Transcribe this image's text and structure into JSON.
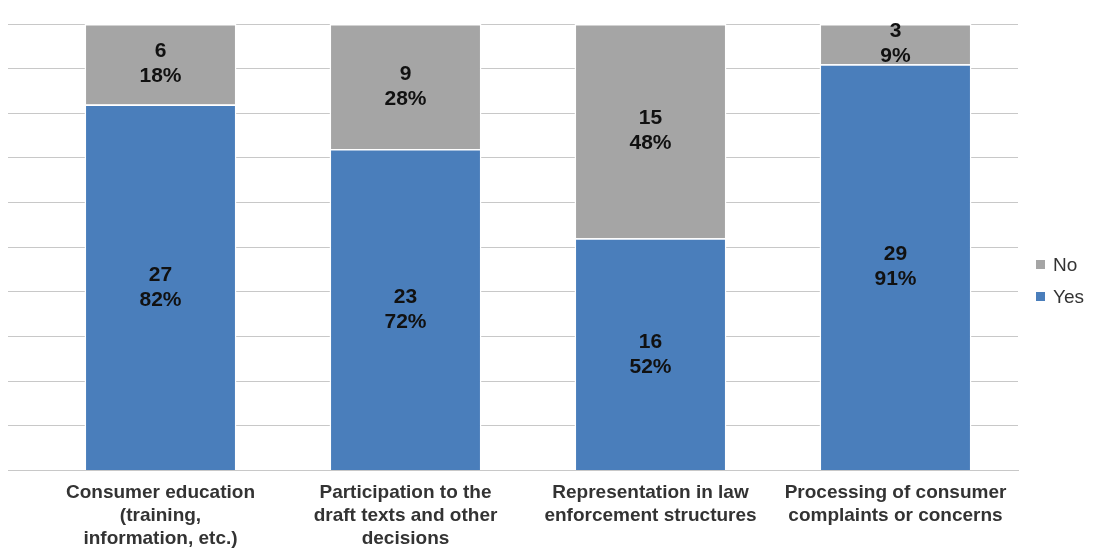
{
  "chart_data": {
    "type": "bar",
    "stacked": true,
    "categories": [
      "Consumer education (training, information, etc.)",
      "Participation to the draft texts and other decisions",
      "Representation in law enforcement structures",
      "Processing of consumer complaints or concerns"
    ],
    "series": [
      {
        "name": "Yes",
        "color": "#4a7ebb",
        "values": [
          82,
          72,
          52,
          91
        ],
        "value_labels": [
          "27\n82%",
          "23\n72%",
          "16\n52%",
          "29\n91%"
        ]
      },
      {
        "name": "No",
        "color": "#a5a5a5",
        "values": [
          18,
          28,
          48,
          9
        ],
        "value_labels": [
          "6\n18%",
          "9\n28%",
          "15\n48%",
          "3\n9%"
        ]
      }
    ],
    "ylim": [
      0,
      100
    ],
    "yticks": [
      {
        "value": 0,
        "label": null
      },
      {
        "value": 10,
        "label": null
      },
      {
        "value": 20,
        "label": null
      },
      {
        "value": 30,
        "label": null
      },
      {
        "value": 40,
        "label": null
      },
      {
        "value": 50,
        "label": null
      },
      {
        "value": 60,
        "label": null
      },
      {
        "value": 70,
        "label": null
      },
      {
        "value": 80,
        "label": null
      },
      {
        "value": 90,
        "label": null
      },
      {
        "value": 100,
        "label": null
      }
    ],
    "tick_labels": "x",
    "grid": "y",
    "legend": "right"
  }
}
